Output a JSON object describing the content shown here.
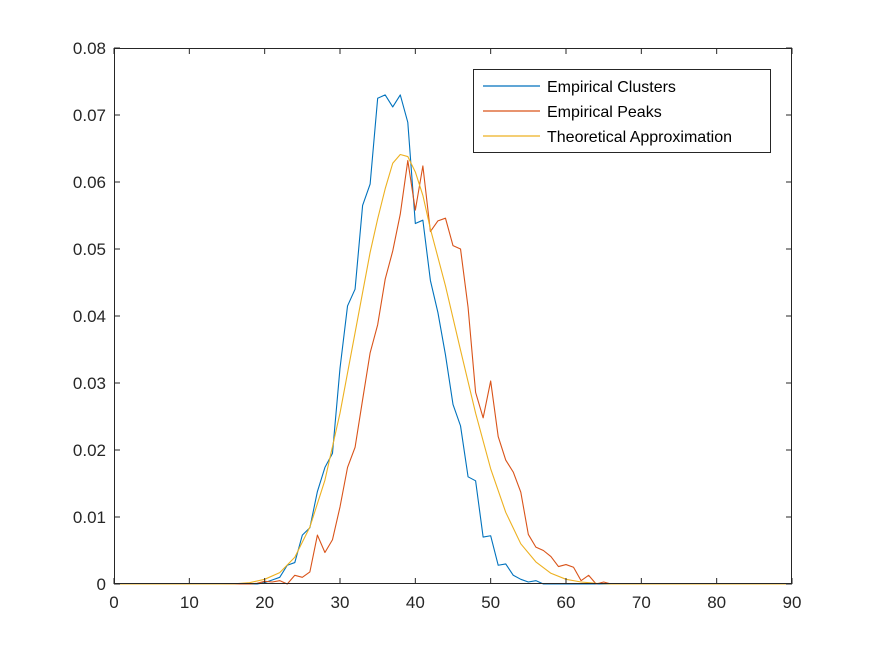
{
  "chart_data": {
    "type": "line",
    "title": "",
    "xlabel": "",
    "ylabel": "",
    "xlim": [
      0,
      90
    ],
    "ylim": [
      0,
      0.08
    ],
    "xticks": [
      "0",
      "10",
      "20",
      "30",
      "40",
      "50",
      "60",
      "70",
      "80",
      "90"
    ],
    "yticks": [
      "0",
      "0.01",
      "0.02",
      "0.03",
      "0.04",
      "0.05",
      "0.06",
      "0.07",
      "0.08"
    ],
    "grid": false,
    "legend_position": "top-right",
    "series": [
      {
        "name": "Empirical Clusters",
        "color": "#0072bd",
        "points": [
          [
            0,
            0
          ],
          [
            17,
            0
          ],
          [
            18,
            0
          ],
          [
            19,
            0
          ],
          [
            20,
            0.0002
          ],
          [
            21,
            0.0006
          ],
          [
            22,
            0.001
          ],
          [
            23,
            0.0028
          ],
          [
            24,
            0.0032
          ],
          [
            25,
            0.0073
          ],
          [
            26,
            0.0084
          ],
          [
            27,
            0.0138
          ],
          [
            28,
            0.0174
          ],
          [
            29,
            0.0195
          ],
          [
            30,
            0.0322
          ],
          [
            31,
            0.0415
          ],
          [
            32,
            0.044
          ],
          [
            33,
            0.0565
          ],
          [
            34,
            0.0597
          ],
          [
            35,
            0.0725
          ],
          [
            36,
            0.073
          ],
          [
            37,
            0.0712
          ],
          [
            38,
            0.073
          ],
          [
            39,
            0.0689
          ],
          [
            40,
            0.0538
          ],
          [
            41,
            0.0543
          ],
          [
            42,
            0.0453
          ],
          [
            43,
            0.0405
          ],
          [
            44,
            0.0342
          ],
          [
            45,
            0.0268
          ],
          [
            46,
            0.0236
          ],
          [
            47,
            0.016
          ],
          [
            48,
            0.0154
          ],
          [
            49,
            0.007
          ],
          [
            50,
            0.0072
          ],
          [
            51,
            0.0028
          ],
          [
            52,
            0.003
          ],
          [
            53,
            0.0013
          ],
          [
            54,
            0.0007
          ],
          [
            55,
            0.0003
          ],
          [
            56,
            0.0005
          ],
          [
            57,
            0
          ],
          [
            58,
            0
          ],
          [
            90,
            0
          ]
        ]
      },
      {
        "name": "Empirical Peaks",
        "color": "#d95319",
        "points": [
          [
            0,
            0
          ],
          [
            18,
            0
          ],
          [
            19,
            0.0001
          ],
          [
            20,
            0.0004
          ],
          [
            21,
            0.0003
          ],
          [
            22,
            0.0005
          ],
          [
            23,
            0
          ],
          [
            24,
            0.0013
          ],
          [
            25,
            0.001
          ],
          [
            26,
            0.0018
          ],
          [
            27,
            0.0073
          ],
          [
            28,
            0.0047
          ],
          [
            29,
            0.0066
          ],
          [
            30,
            0.0115
          ],
          [
            31,
            0.0174
          ],
          [
            32,
            0.0204
          ],
          [
            33,
            0.0275
          ],
          [
            34,
            0.0345
          ],
          [
            35,
            0.0387
          ],
          [
            36,
            0.0455
          ],
          [
            37,
            0.0497
          ],
          [
            38,
            0.0552
          ],
          [
            39,
            0.0632
          ],
          [
            40,
            0.0558
          ],
          [
            41,
            0.0624
          ],
          [
            42,
            0.0526
          ],
          [
            43,
            0.0542
          ],
          [
            44,
            0.0546
          ],
          [
            45,
            0.0505
          ],
          [
            46,
            0.05
          ],
          [
            47,
            0.0413
          ],
          [
            48,
            0.0286
          ],
          [
            49,
            0.0248
          ],
          [
            50,
            0.0303
          ],
          [
            51,
            0.022
          ],
          [
            52,
            0.0185
          ],
          [
            53,
            0.0167
          ],
          [
            54,
            0.0137
          ],
          [
            55,
            0.0074
          ],
          [
            56,
            0.0055
          ],
          [
            57,
            0.005
          ],
          [
            58,
            0.0041
          ],
          [
            59,
            0.0026
          ],
          [
            60,
            0.0029
          ],
          [
            61,
            0.0025
          ],
          [
            62,
            0.0005
          ],
          [
            63,
            0.0013
          ],
          [
            64,
            0
          ],
          [
            65,
            0.0003
          ],
          [
            66,
            0
          ],
          [
            90,
            0
          ]
        ]
      },
      {
        "name": "Theoretical Approximation",
        "color": "#edb120",
        "points": [
          [
            0,
            0
          ],
          [
            14,
            0
          ],
          [
            16,
            3e-05
          ],
          [
            18,
            0.0002
          ],
          [
            20,
            0.0007
          ],
          [
            22,
            0.0017
          ],
          [
            24,
            0.004
          ],
          [
            26,
            0.0085
          ],
          [
            28,
            0.0155
          ],
          [
            30,
            0.0255
          ],
          [
            32,
            0.0375
          ],
          [
            34,
            0.0495
          ],
          [
            35,
            0.0545
          ],
          [
            36,
            0.059
          ],
          [
            37,
            0.0628
          ],
          [
            38,
            0.0641
          ],
          [
            39,
            0.0638
          ],
          [
            40,
            0.0615
          ],
          [
            41,
            0.058
          ],
          [
            42,
            0.053
          ],
          [
            44,
            0.0445
          ],
          [
            46,
            0.0349
          ],
          [
            48,
            0.0255
          ],
          [
            50,
            0.0172
          ],
          [
            52,
            0.0107
          ],
          [
            54,
            0.006
          ],
          [
            56,
            0.0033
          ],
          [
            58,
            0.0016
          ],
          [
            60,
            0.0007
          ],
          [
            62,
            0.0003
          ],
          [
            64,
            0.0001
          ],
          [
            66,
            0
          ],
          [
            90,
            0
          ]
        ]
      }
    ]
  }
}
